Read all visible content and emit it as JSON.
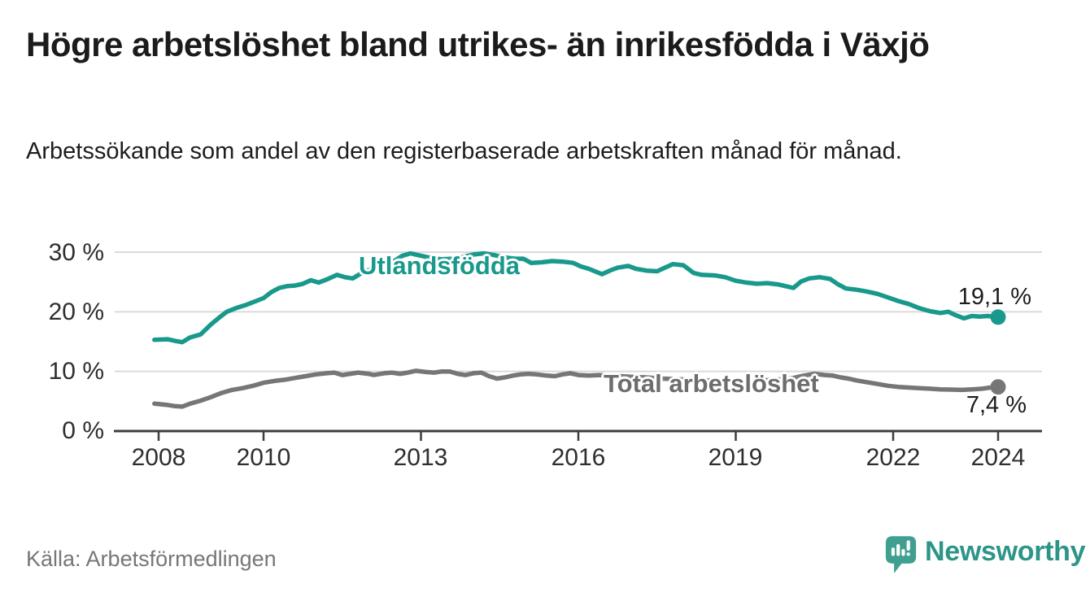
{
  "header": {
    "title": "Högre arbetslöshet bland utrikes- än inrikesfödda i Växjö",
    "subtitle": "Arbetssökande som andel av den registerbaserade arbetskraften månad för månad."
  },
  "chart_data": {
    "type": "line",
    "unit": "%",
    "grid": "horizontal",
    "legend_position": "inline-labels-on-lines",
    "x_axis": {
      "ticks": [
        2008,
        2010,
        2013,
        2016,
        2019,
        2022,
        2024
      ],
      "labels": [
        "2008",
        "2010",
        "2013",
        "2016",
        "2019",
        "2022",
        "2024"
      ],
      "range_years": [
        2007.2,
        2024.8
      ]
    },
    "y_axis": {
      "ticks": [
        0,
        10,
        20,
        30
      ],
      "labels": [
        "0 %",
        "10 %",
        "20 %",
        "30 %"
      ],
      "range": [
        0,
        30
      ]
    },
    "series": [
      {
        "name": "Utlandsfödda",
        "color": "#18998B",
        "end_value_label": "19,1 %",
        "end_value": 19.1,
        "points": [
          [
            2007.92,
            15.3
          ],
          [
            2008.17,
            15.4
          ],
          [
            2008.33,
            15.1
          ],
          [
            2008.45,
            14.9
          ],
          [
            2008.6,
            15.7
          ],
          [
            2008.8,
            16.2
          ],
          [
            2009.0,
            17.9
          ],
          [
            2009.15,
            19.0
          ],
          [
            2009.3,
            20.0
          ],
          [
            2009.5,
            20.7
          ],
          [
            2009.65,
            21.1
          ],
          [
            2009.8,
            21.6
          ],
          [
            2010.0,
            22.3
          ],
          [
            2010.15,
            23.3
          ],
          [
            2010.3,
            24.0
          ],
          [
            2010.45,
            24.3
          ],
          [
            2010.6,
            24.4
          ],
          [
            2010.75,
            24.7
          ],
          [
            2010.9,
            25.3
          ],
          [
            2011.05,
            24.9
          ],
          [
            2011.2,
            25.4
          ],
          [
            2011.4,
            26.2
          ],
          [
            2011.55,
            25.8
          ],
          [
            2011.7,
            25.6
          ],
          [
            2011.85,
            26.4
          ],
          [
            2012.0,
            27.0
          ],
          [
            2012.15,
            27.0
          ],
          [
            2012.3,
            27.4
          ],
          [
            2012.5,
            28.6
          ],
          [
            2012.65,
            29.4
          ],
          [
            2012.8,
            29.8
          ],
          [
            2013.0,
            29.4
          ],
          [
            2013.2,
            29.0
          ],
          [
            2013.4,
            28.8
          ],
          [
            2013.6,
            28.9
          ],
          [
            2013.8,
            29.2
          ],
          [
            2014.0,
            29.6
          ],
          [
            2014.2,
            29.8
          ],
          [
            2014.4,
            29.5
          ],
          [
            2014.6,
            29.1
          ],
          [
            2014.8,
            28.9
          ],
          [
            2014.95,
            28.9
          ],
          [
            2015.1,
            28.2
          ],
          [
            2015.3,
            28.3
          ],
          [
            2015.5,
            28.5
          ],
          [
            2015.7,
            28.4
          ],
          [
            2015.9,
            28.2
          ],
          [
            2016.05,
            27.6
          ],
          [
            2016.2,
            27.2
          ],
          [
            2016.45,
            26.3
          ],
          [
            2016.6,
            26.9
          ],
          [
            2016.75,
            27.4
          ],
          [
            2016.95,
            27.7
          ],
          [
            2017.1,
            27.2
          ],
          [
            2017.3,
            26.9
          ],
          [
            2017.5,
            26.8
          ],
          [
            2017.65,
            27.4
          ],
          [
            2017.8,
            28.0
          ],
          [
            2018.0,
            27.8
          ],
          [
            2018.2,
            26.5
          ],
          [
            2018.35,
            26.2
          ],
          [
            2018.6,
            26.1
          ],
          [
            2018.8,
            25.8
          ],
          [
            2019.0,
            25.2
          ],
          [
            2019.2,
            24.9
          ],
          [
            2019.4,
            24.7
          ],
          [
            2019.6,
            24.8
          ],
          [
            2019.8,
            24.6
          ],
          [
            2019.95,
            24.3
          ],
          [
            2020.1,
            24.0
          ],
          [
            2020.25,
            25.1
          ],
          [
            2020.4,
            25.6
          ],
          [
            2020.6,
            25.8
          ],
          [
            2020.8,
            25.5
          ],
          [
            2020.95,
            24.6
          ],
          [
            2021.1,
            23.9
          ],
          [
            2021.3,
            23.7
          ],
          [
            2021.5,
            23.4
          ],
          [
            2021.7,
            23.0
          ],
          [
            2021.9,
            22.4
          ],
          [
            2022.1,
            21.8
          ],
          [
            2022.3,
            21.3
          ],
          [
            2022.5,
            20.6
          ],
          [
            2022.7,
            20.1
          ],
          [
            2022.9,
            19.8
          ],
          [
            2023.05,
            20.0
          ],
          [
            2023.2,
            19.4
          ],
          [
            2023.35,
            18.9
          ],
          [
            2023.5,
            19.3
          ],
          [
            2023.65,
            19.2
          ],
          [
            2023.8,
            19.3
          ],
          [
            2023.92,
            19.2
          ],
          [
            2024.0,
            19.1
          ]
        ]
      },
      {
        "name": "Total arbetslöshet",
        "color": "#767676",
        "end_value_label": "7,4 %",
        "end_value": 7.4,
        "points": [
          [
            2007.92,
            4.6
          ],
          [
            2008.15,
            4.4
          ],
          [
            2008.3,
            4.2
          ],
          [
            2008.45,
            4.1
          ],
          [
            2008.6,
            4.6
          ],
          [
            2008.8,
            5.1
          ],
          [
            2009.0,
            5.7
          ],
          [
            2009.2,
            6.4
          ],
          [
            2009.4,
            6.9
          ],
          [
            2009.6,
            7.2
          ],
          [
            2009.8,
            7.6
          ],
          [
            2010.0,
            8.1
          ],
          [
            2010.2,
            8.4
          ],
          [
            2010.4,
            8.6
          ],
          [
            2010.6,
            8.9
          ],
          [
            2010.8,
            9.2
          ],
          [
            2011.0,
            9.5
          ],
          [
            2011.2,
            9.7
          ],
          [
            2011.35,
            9.8
          ],
          [
            2011.5,
            9.4
          ],
          [
            2011.65,
            9.6
          ],
          [
            2011.8,
            9.8
          ],
          [
            2012.0,
            9.6
          ],
          [
            2012.1,
            9.4
          ],
          [
            2012.3,
            9.7
          ],
          [
            2012.45,
            9.8
          ],
          [
            2012.6,
            9.6
          ],
          [
            2012.75,
            9.8
          ],
          [
            2012.9,
            10.1
          ],
          [
            2013.1,
            9.9
          ],
          [
            2013.25,
            9.8
          ],
          [
            2013.4,
            10.0
          ],
          [
            2013.55,
            10.0
          ],
          [
            2013.7,
            9.6
          ],
          [
            2013.85,
            9.4
          ],
          [
            2014.0,
            9.7
          ],
          [
            2014.15,
            9.8
          ],
          [
            2014.3,
            9.2
          ],
          [
            2014.45,
            8.8
          ],
          [
            2014.6,
            9.0
          ],
          [
            2014.75,
            9.3
          ],
          [
            2014.9,
            9.5
          ],
          [
            2015.05,
            9.6
          ],
          [
            2015.2,
            9.5
          ],
          [
            2015.4,
            9.3
          ],
          [
            2015.55,
            9.2
          ],
          [
            2015.7,
            9.5
          ],
          [
            2015.85,
            9.7
          ],
          [
            2016.0,
            9.4
          ],
          [
            2016.2,
            9.3
          ],
          [
            2016.4,
            9.4
          ],
          [
            2016.6,
            9.3
          ],
          [
            2016.8,
            9.2
          ],
          [
            2017.0,
            9.1
          ],
          [
            2017.3,
            9.0
          ],
          [
            2017.6,
            8.8
          ],
          [
            2017.9,
            8.7
          ],
          [
            2018.2,
            8.6
          ],
          [
            2018.5,
            8.5
          ],
          [
            2018.8,
            8.4
          ],
          [
            2019.1,
            8.3
          ],
          [
            2019.4,
            8.4
          ],
          [
            2019.7,
            8.6
          ],
          [
            2019.9,
            8.7
          ],
          [
            2020.1,
            8.9
          ],
          [
            2020.3,
            9.3
          ],
          [
            2020.5,
            9.6
          ],
          [
            2020.7,
            9.4
          ],
          [
            2020.85,
            9.3
          ],
          [
            2021.0,
            9.0
          ],
          [
            2021.15,
            8.8
          ],
          [
            2021.3,
            8.5
          ],
          [
            2021.5,
            8.2
          ],
          [
            2021.7,
            7.9
          ],
          [
            2021.9,
            7.6
          ],
          [
            2022.1,
            7.4
          ],
          [
            2022.3,
            7.3
          ],
          [
            2022.5,
            7.2
          ],
          [
            2022.7,
            7.1
          ],
          [
            2022.9,
            7.0
          ],
          [
            2023.1,
            6.95
          ],
          [
            2023.3,
            6.9
          ],
          [
            2023.5,
            7.0
          ],
          [
            2023.7,
            7.1
          ],
          [
            2023.85,
            7.3
          ],
          [
            2024.0,
            7.4
          ]
        ]
      }
    ]
  },
  "footer": {
    "source": "Källa: Arbetsförmedlingen",
    "brand": "Newsworthy"
  },
  "colors": {
    "accent_teal": "#18998B",
    "series_gray": "#767676",
    "grid": "#DADADA",
    "axis": "#3D3D3D",
    "text": "#1C1C1C",
    "muted": "#777777",
    "brand_teal": "#2D9587",
    "logo_bubble": "#3FA092"
  }
}
